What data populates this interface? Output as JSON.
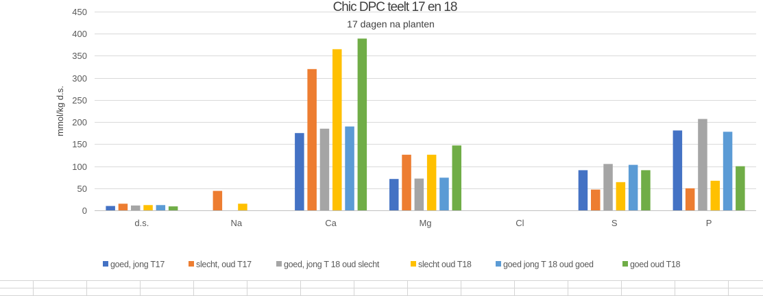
{
  "chart_data": {
    "type": "bar",
    "title": "Chic DPC teelt  17 en 18",
    "subtitle": "17 dagen na planten",
    "xlabel": "",
    "ylabel": "mmol/kg d.s.",
    "ylim": [
      0,
      450
    ],
    "yticks": [
      "0",
      "50",
      "100",
      "150",
      "200",
      "250",
      "300",
      "350",
      "400",
      "450"
    ],
    "grid": true,
    "legend_position": "bottom",
    "categories": [
      "d.s.",
      "Na",
      "Ca",
      "Mg",
      "Cl",
      "S",
      "P"
    ],
    "series": [
      {
        "name": "goed, jong T17",
        "color": "#4472c4",
        "values": [
          10,
          0,
          175,
          71,
          0,
          91,
          181
        ]
      },
      {
        "name": "slecht, oud T17",
        "color": "#ed7d31",
        "values": [
          15,
          44,
          320,
          126,
          0,
          47,
          50
        ]
      },
      {
        "name": "goed, jong T 18 oud slecht",
        "color": "#a5a5a5",
        "values": [
          11,
          0,
          185,
          72,
          0,
          105,
          207
        ]
      },
      {
        "name": "slecht oud T18",
        "color": "#ffc000",
        "values": [
          12,
          15,
          365,
          126,
          0,
          64,
          67
        ]
      },
      {
        "name": "goed jong T 18 oud goed",
        "color": "#5b9bd5",
        "values": [
          12,
          0,
          190,
          74,
          0,
          103,
          178
        ]
      },
      {
        "name": "goed oud T18",
        "color": "#70ad47",
        "values": [
          9,
          0,
          389,
          147,
          0,
          91,
          100
        ]
      }
    ]
  }
}
